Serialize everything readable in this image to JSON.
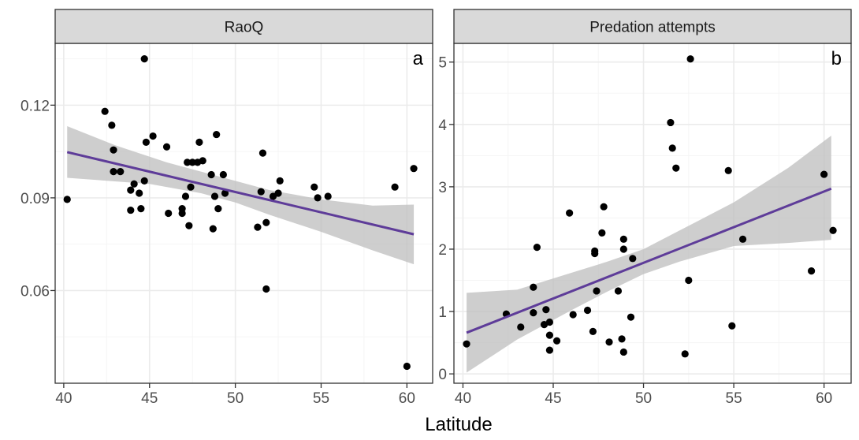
{
  "chart_data": [
    {
      "type": "scatter",
      "strip_title": "RaoQ",
      "panel_label": "a",
      "xlim": [
        39.5,
        61.5
      ],
      "ylim": [
        0.03,
        0.14
      ],
      "xticks": [
        40,
        45,
        50,
        55,
        60
      ],
      "yticks": [
        0.06,
        0.09,
        0.12
      ],
      "ytick_labels": [
        "0.06",
        "0.09",
        "0.12"
      ],
      "grid": true,
      "points": [
        [
          40.2,
          0.0895
        ],
        [
          42.4,
          0.118
        ],
        [
          42.8,
          0.1135
        ],
        [
          42.9,
          0.1055
        ],
        [
          42.9,
          0.0985
        ],
        [
          43.3,
          0.0985
        ],
        [
          43.9,
          0.086
        ],
        [
          43.9,
          0.0925
        ],
        [
          44.1,
          0.0945
        ],
        [
          44.4,
          0.0915
        ],
        [
          44.5,
          0.0865
        ],
        [
          44.7,
          0.0955
        ],
        [
          44.7,
          0.135
        ],
        [
          44.8,
          0.108
        ],
        [
          45.2,
          0.11
        ],
        [
          46.0,
          0.1065
        ],
        [
          46.1,
          0.085
        ],
        [
          46.9,
          0.0865
        ],
        [
          46.9,
          0.085
        ],
        [
          47.1,
          0.0905
        ],
        [
          47.2,
          0.1015
        ],
        [
          47.3,
          0.081
        ],
        [
          47.4,
          0.0935
        ],
        [
          47.5,
          0.1015
        ],
        [
          47.8,
          0.1015
        ],
        [
          47.9,
          0.108
        ],
        [
          48.1,
          0.102
        ],
        [
          48.6,
          0.0975
        ],
        [
          48.7,
          0.08
        ],
        [
          48.8,
          0.0905
        ],
        [
          48.9,
          0.1105
        ],
        [
          49.0,
          0.0865
        ],
        [
          49.3,
          0.0975
        ],
        [
          49.4,
          0.0915
        ],
        [
          51.3,
          0.0805
        ],
        [
          51.5,
          0.092
        ],
        [
          51.6,
          0.1045
        ],
        [
          51.8,
          0.082
        ],
        [
          51.8,
          0.0605
        ],
        [
          52.2,
          0.0905
        ],
        [
          52.5,
          0.0915
        ],
        [
          52.6,
          0.0955
        ],
        [
          54.6,
          0.0935
        ],
        [
          54.8,
          0.09
        ],
        [
          55.4,
          0.0905
        ],
        [
          59.3,
          0.0935
        ],
        [
          60.0,
          0.0355
        ],
        [
          60.4,
          0.0995
        ]
      ],
      "fit": {
        "x0": 40.2,
        "x1": 60.4,
        "y0": 0.1048,
        "y1": 0.0782
      },
      "ci_lower": [
        [
          40.2,
          0.0965
        ],
        [
          45,
          0.0945
        ],
        [
          48,
          0.0915
        ],
        [
          50,
          0.0885
        ],
        [
          52,
          0.0845
        ],
        [
          55,
          0.079
        ],
        [
          58,
          0.073
        ],
        [
          60.4,
          0.0685
        ]
      ],
      "ci_upper": [
        [
          40.2,
          0.1132
        ],
        [
          43,
          0.107
        ],
        [
          46,
          0.1015
        ],
        [
          48,
          0.0985
        ],
        [
          50,
          0.0955
        ],
        [
          52,
          0.0925
        ],
        [
          55,
          0.0895
        ],
        [
          58,
          0.0875
        ],
        [
          60.4,
          0.0878
        ]
      ],
      "colors": {
        "fit_line": "#5e3c99",
        "ci_band": "#bdbdbd"
      }
    },
    {
      "type": "scatter",
      "strip_title": "Predation attempts",
      "panel_label": "b",
      "xlim": [
        39.5,
        61.5
      ],
      "ylim": [
        -0.15,
        5.3
      ],
      "xticks": [
        40,
        45,
        50,
        55,
        60
      ],
      "yticks": [
        0,
        1,
        2,
        3,
        4,
        5
      ],
      "ytick_labels": [
        "0",
        "1",
        "2",
        "3",
        "4",
        "5"
      ],
      "grid": true,
      "points": [
        [
          40.2,
          0.48
        ],
        [
          42.4,
          0.96
        ],
        [
          43.2,
          0.75
        ],
        [
          43.9,
          0.98
        ],
        [
          43.9,
          1.39
        ],
        [
          44.1,
          2.03
        ],
        [
          44.5,
          0.79
        ],
        [
          44.6,
          1.03
        ],
        [
          44.8,
          0.83
        ],
        [
          44.8,
          0.38
        ],
        [
          44.8,
          0.62
        ],
        [
          45.2,
          0.53
        ],
        [
          45.9,
          2.58
        ],
        [
          46.1,
          0.95
        ],
        [
          46.9,
          1.02
        ],
        [
          47.2,
          0.68
        ],
        [
          47.3,
          1.93
        ],
        [
          47.3,
          1.97
        ],
        [
          47.4,
          1.33
        ],
        [
          47.7,
          2.26
        ],
        [
          47.8,
          2.68
        ],
        [
          48.1,
          0.51
        ],
        [
          48.6,
          1.33
        ],
        [
          48.8,
          0.56
        ],
        [
          48.9,
          2.16
        ],
        [
          48.9,
          0.35
        ],
        [
          48.9,
          2.0
        ],
        [
          49.3,
          0.91
        ],
        [
          49.4,
          1.85
        ],
        [
          51.5,
          4.03
        ],
        [
          51.6,
          3.62
        ],
        [
          51.8,
          3.3
        ],
        [
          52.3,
          0.32
        ],
        [
          52.5,
          1.5
        ],
        [
          52.6,
          5.05
        ],
        [
          54.7,
          3.26
        ],
        [
          54.9,
          0.77
        ],
        [
          55.5,
          2.16
        ],
        [
          59.3,
          1.65
        ],
        [
          60.0,
          3.2
        ],
        [
          60.5,
          2.3
        ]
      ],
      "fit": {
        "x0": 40.2,
        "x1": 60.4,
        "y0": 0.66,
        "y1": 2.97
      },
      "ci_lower": [
        [
          40.2,
          0.02
        ],
        [
          43,
          0.55
        ],
        [
          46,
          1.02
        ],
        [
          48,
          1.32
        ],
        [
          50,
          1.6
        ],
        [
          52,
          1.8
        ],
        [
          55,
          2.05
        ],
        [
          58,
          2.1
        ],
        [
          60.4,
          2.15
        ]
      ],
      "ci_upper": [
        [
          40.2,
          1.3
        ],
        [
          43,
          1.35
        ],
        [
          46,
          1.62
        ],
        [
          48,
          1.8
        ],
        [
          50,
          2.0
        ],
        [
          52,
          2.3
        ],
        [
          55,
          2.75
        ],
        [
          58,
          3.3
        ],
        [
          60.4,
          3.82
        ]
      ],
      "colors": {
        "fit_line": "#5e3c99",
        "ci_band": "#bdbdbd"
      }
    }
  ],
  "shared": {
    "xlabel": "Latitude",
    "colors": {
      "strip_bg": "#d9d9d9",
      "panel_border": "#333333",
      "grid_major": "#ebebeb",
      "grid_minor": "#f5f5f5",
      "point": "#000000",
      "tick_text": "#4d4d4d"
    }
  }
}
